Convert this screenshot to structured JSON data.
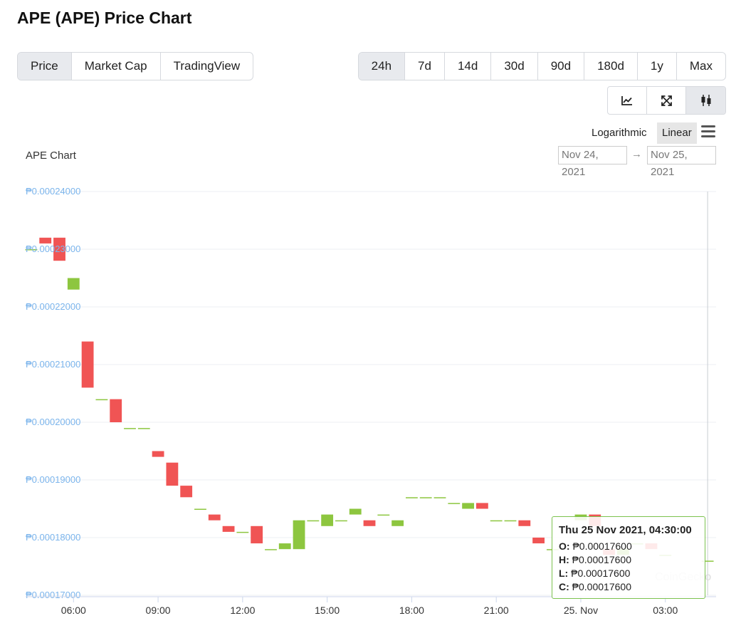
{
  "page_title": "APE (APE) Price Chart",
  "metric_tabs": [
    {
      "label": "Price",
      "active": true
    },
    {
      "label": "Market Cap",
      "active": false
    },
    {
      "label": "TradingView",
      "active": false
    }
  ],
  "range_tabs": [
    {
      "label": "24h",
      "active": true
    },
    {
      "label": "7d",
      "active": false
    },
    {
      "label": "14d",
      "active": false
    },
    {
      "label": "30d",
      "active": false
    },
    {
      "label": "90d",
      "active": false
    },
    {
      "label": "180d",
      "active": false
    },
    {
      "label": "1y",
      "active": false
    },
    {
      "label": "Max",
      "active": false
    }
  ],
  "chart_type_buttons": [
    {
      "icon": "line-chart-icon",
      "active": false
    },
    {
      "icon": "expand-icon",
      "active": false
    },
    {
      "icon": "candlestick-icon",
      "active": true
    }
  ],
  "scale": {
    "log_label": "Logarithmic",
    "linear_label": "Linear",
    "selected": "Linear"
  },
  "chart_label": "APE Chart",
  "date_range": {
    "from": "Nov 24, 2021",
    "to": "Nov 25, 2021",
    "arrow": "→"
  },
  "watermark": "CoinGecko",
  "colors": {
    "up": "#8dc63f",
    "down": "#f05454",
    "axis_label": "#7cb5ec",
    "tooltip_border": "#7cc24f"
  },
  "tooltip": {
    "date": "Thu 25 Nov 2021, 04:30:00",
    "o_label": "O:",
    "o_value": "₱0.00017600",
    "h_label": "H:",
    "h_value": "₱0.00017600",
    "l_label": "L:",
    "l_value": "₱0.00017600",
    "c_label": "C:",
    "c_value": "₱0.00017600"
  },
  "chart_data": {
    "type": "candlestick",
    "currency_prefix": "₱",
    "ylim": [
      0.00017,
      0.00024
    ],
    "y_ticks": [
      "₱0.00024000",
      "₱0.00023000",
      "₱0.00022000",
      "₱0.00021000",
      "₱0.00020000",
      "₱0.00019000",
      "₱0.00018000",
      "₱0.00017000"
    ],
    "y_tick_values": [
      0.00024,
      0.00023,
      0.00022,
      0.00021,
      0.0002,
      0.00019,
      0.00018,
      0.00017
    ],
    "x_ticks": [
      "06:00",
      "09:00",
      "12:00",
      "15:00",
      "18:00",
      "21:00",
      "25. Nov",
      "03:00"
    ],
    "x_tick_hours": [
      6,
      9,
      12,
      15,
      18,
      21,
      24,
      27
    ],
    "x_range_hours": [
      4.3,
      28.8
    ],
    "candles": [
      {
        "t": 4.5,
        "o": 0.00023,
        "c": 0.00023
      },
      {
        "t": 5.0,
        "o": 0.000232,
        "c": 0.000231
      },
      {
        "t": 5.5,
        "o": 0.000232,
        "c": 0.000228
      },
      {
        "t": 6.0,
        "o": 0.000223,
        "c": 0.000225
      },
      {
        "t": 6.5,
        "o": 0.000214,
        "c": 0.000206
      },
      {
        "t": 7.0,
        "o": 0.000204,
        "c": 0.000204
      },
      {
        "t": 7.5,
        "o": 0.000204,
        "c": 0.0002
      },
      {
        "t": 8.0,
        "o": 0.000199,
        "c": 0.000199
      },
      {
        "t": 8.5,
        "o": 0.000199,
        "c": 0.000199
      },
      {
        "t": 9.0,
        "o": 0.000195,
        "c": 0.000194
      },
      {
        "t": 9.5,
        "o": 0.000193,
        "c": 0.000189
      },
      {
        "t": 10.0,
        "o": 0.000189,
        "c": 0.000187
      },
      {
        "t": 10.5,
        "o": 0.000185,
        "c": 0.000185
      },
      {
        "t": 11.0,
        "o": 0.000184,
        "c": 0.000183
      },
      {
        "t": 11.5,
        "o": 0.000182,
        "c": 0.000181
      },
      {
        "t": 12.0,
        "o": 0.000181,
        "c": 0.000181
      },
      {
        "t": 12.5,
        "o": 0.000182,
        "c": 0.000179
      },
      {
        "t": 13.0,
        "o": 0.000178,
        "c": 0.000178
      },
      {
        "t": 13.5,
        "o": 0.000178,
        "c": 0.000179
      },
      {
        "t": 14.0,
        "o": 0.000178,
        "c": 0.000183
      },
      {
        "t": 14.5,
        "o": 0.000183,
        "c": 0.000183
      },
      {
        "t": 15.0,
        "o": 0.000182,
        "c": 0.000184
      },
      {
        "t": 15.5,
        "o": 0.000183,
        "c": 0.000183
      },
      {
        "t": 16.0,
        "o": 0.000184,
        "c": 0.000185
      },
      {
        "t": 16.5,
        "o": 0.000183,
        "c": 0.000182
      },
      {
        "t": 17.0,
        "o": 0.000184,
        "c": 0.000184
      },
      {
        "t": 17.5,
        "o": 0.000182,
        "c": 0.000183
      },
      {
        "t": 18.0,
        "o": 0.000187,
        "c": 0.000187
      },
      {
        "t": 18.5,
        "o": 0.000187,
        "c": 0.000187
      },
      {
        "t": 19.0,
        "o": 0.000187,
        "c": 0.000187
      },
      {
        "t": 19.5,
        "o": 0.000186,
        "c": 0.000186
      },
      {
        "t": 20.0,
        "o": 0.000185,
        "c": 0.000186
      },
      {
        "t": 20.5,
        "o": 0.000186,
        "c": 0.000185
      },
      {
        "t": 21.0,
        "o": 0.000183,
        "c": 0.000183
      },
      {
        "t": 21.5,
        "o": 0.000183,
        "c": 0.000183
      },
      {
        "t": 22.0,
        "o": 0.000183,
        "c": 0.000182
      },
      {
        "t": 22.5,
        "o": 0.00018,
        "c": 0.000179
      },
      {
        "t": 23.0,
        "o": 0.000178,
        "c": 0.000178
      },
      {
        "t": 24.0,
        "o": 0.000183,
        "c": 0.000184
      },
      {
        "t": 24.5,
        "o": 0.000184,
        "c": 0.000182
      },
      {
        "t": 25.0,
        "o": 0.000178,
        "c": 0.000177
      },
      {
        "t": 25.5,
        "o": 0.000177,
        "c": 0.000178
      },
      {
        "t": 26.0,
        "o": 0.000179,
        "c": 0.000179
      },
      {
        "t": 26.5,
        "o": 0.000179,
        "c": 0.000178
      },
      {
        "t": 27.0,
        "o": 0.000177,
        "c": 0.000177
      },
      {
        "t": 28.5,
        "o": 0.000176,
        "c": 0.000176
      }
    ]
  }
}
